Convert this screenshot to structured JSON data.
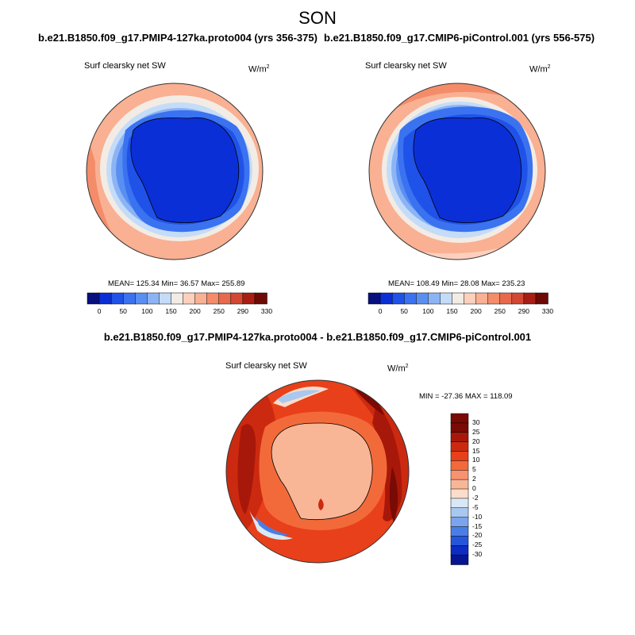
{
  "season": "SON",
  "panels": [
    {
      "case": "b.e21.B1850.f09_g17.PMIP4-127ka.proto004 (yrs 356-375)",
      "variable": "Surf clearsky net SW",
      "units": "W/m",
      "units_sup": "2",
      "stats": "MEAN= 125.34  Min=  36.57  Max= 255.89",
      "colorbar_ticks": [
        "0",
        "50",
        "100",
        "150",
        "200",
        "250",
        "290",
        "330"
      ]
    },
    {
      "case": "b.e21.B1850.f09_g17.CMIP6-piControl.001 (yrs 556-575)",
      "variable": "Surf clearsky net SW",
      "units": "W/m",
      "units_sup": "2",
      "stats": "MEAN= 108.49  Min=  28.08  Max= 235.23",
      "colorbar_ticks": [
        "0",
        "50",
        "100",
        "150",
        "200",
        "250",
        "290",
        "330"
      ]
    }
  ],
  "diff": {
    "case": "b.e21.B1850.f09_g17.PMIP4-127ka.proto004 - b.e21.B1850.f09_g17.CMIP6-piControl.001",
    "variable": "Surf clearsky net SW",
    "units": "W/m",
    "units_sup": "2",
    "stats": "MIN = -27.36 MAX = 118.09",
    "colorbar_ticks": [
      "30",
      "25",
      "20",
      "15",
      "10",
      "5",
      "2",
      "0",
      "-2",
      "-5",
      "-10",
      "-15",
      "-20",
      "-25",
      "-30"
    ]
  },
  "colors": {
    "abs_scale": [
      "#08107f",
      "#0b2fd6",
      "#1f52e8",
      "#3a72f0",
      "#5a8ff2",
      "#8cb4f5",
      "#c4dcf8",
      "#f3ece4",
      "#fcd0bd",
      "#f9b093",
      "#f48c6a",
      "#e86a4d",
      "#d24832",
      "#a81e14",
      "#6e0a06"
    ],
    "diff_scale": [
      "#7a0a04",
      "#a8180a",
      "#cc2a10",
      "#e8401a",
      "#f36a3a",
      "#f89270",
      "#f8b696",
      "#fcdcca",
      "#d8e8f6",
      "#a8c8f0",
      "#7ca4ec",
      "#4a7ee6",
      "#2456dc",
      "#0c2cc4",
      "#061592"
    ]
  }
}
